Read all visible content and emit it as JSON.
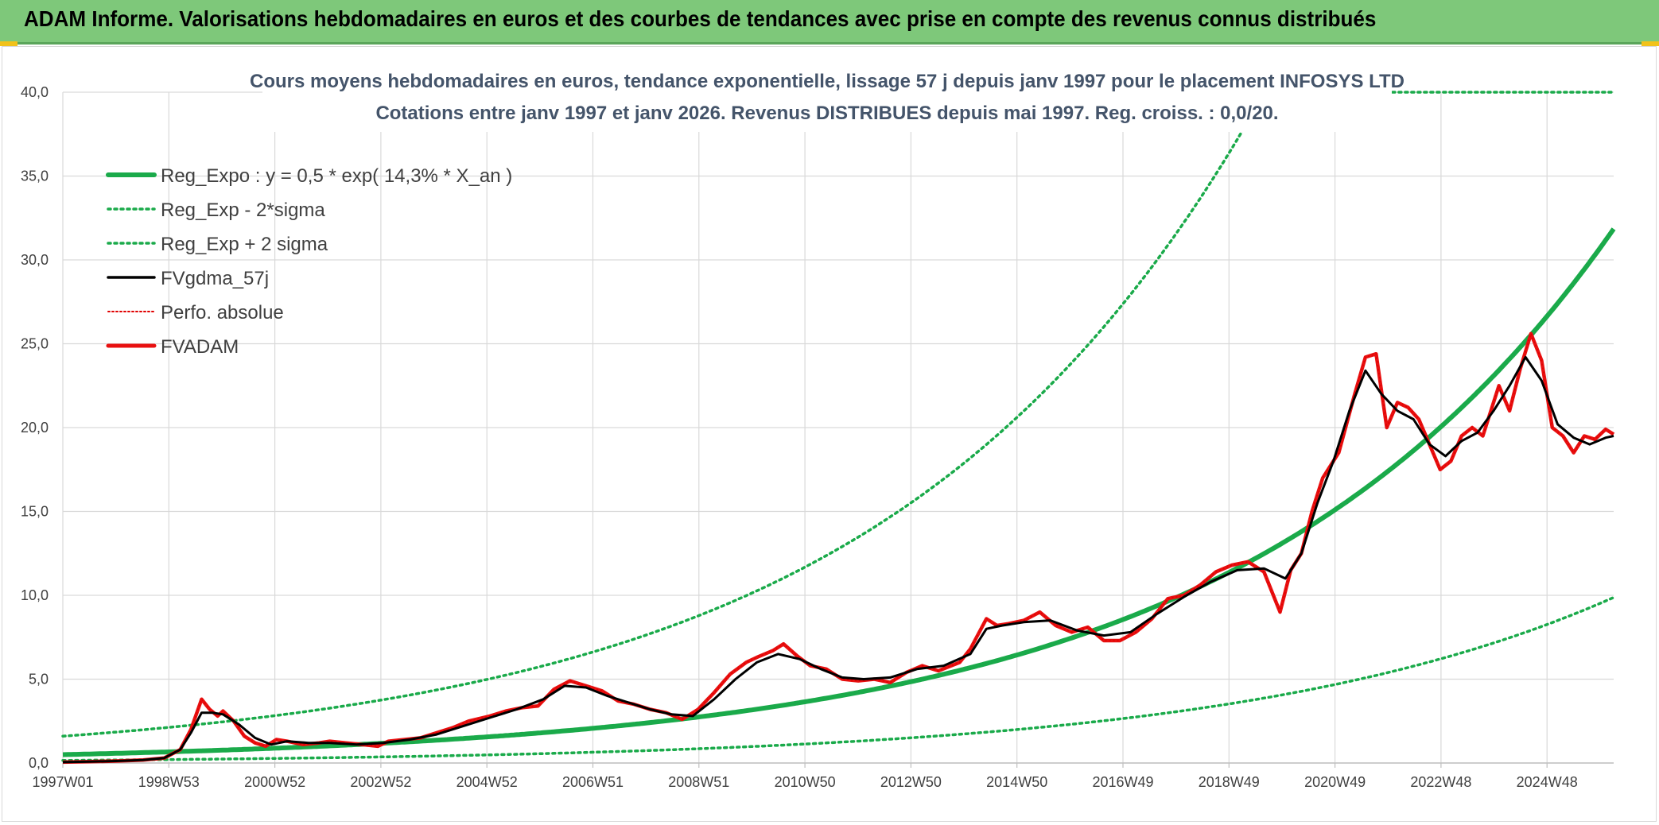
{
  "header": {
    "title": "ADAM Informe. Valorisations hebdomadaires en euros et des courbes de tendances avec prise en compte des revenus connus distribués"
  },
  "colors": {
    "header_bg": "#7ec87a",
    "reg_expo": "#1aaa4a",
    "reg_sigma": "#1aaa4a",
    "fvgdma": "#000000",
    "perfo": "#e00000",
    "fvadam": "#e81010",
    "grid": "#d9d9d9"
  },
  "chart_data": {
    "type": "line",
    "title_line1": "Cours moyens hebdomadaires en euros, tendance exponentielle, lissage 57 j depuis janv 1997 pour le placement INFOSYS LTD",
    "title_line2": "Cotations entre janv 1997 et janv 2026. Revenus DISTRIBUES depuis mai 1997. Reg. croiss. : 0,0/20.",
    "x_tick_labels": [
      "1997W01",
      "1998W53",
      "2000W52",
      "2002W52",
      "2004W52",
      "2006W51",
      "2008W51",
      "2010W50",
      "2012W50",
      "2014W50",
      "2016W49",
      "2018W49",
      "2020W49",
      "2022W48",
      "2024W48"
    ],
    "x_range": [
      1997.0,
      2026.05
    ],
    "ylim": [
      0,
      40
    ],
    "y_ticks": [
      "0,0",
      "5,0",
      "10,0",
      "15,0",
      "20,0",
      "25,0",
      "30,0",
      "35,0",
      "40,0"
    ],
    "grid": true,
    "legend_position": "top-left",
    "legend": [
      {
        "key": "reg_expo",
        "label": "Reg_Expo : y = 0,5 * exp( 14,3% *  X_an )"
      },
      {
        "key": "reg_minus",
        "label": "Reg_Exp - 2*sigma"
      },
      {
        "key": "reg_plus",
        "label": "Reg_Exp + 2 sigma"
      },
      {
        "key": "fvgdma",
        "label": "FVgdma_57j"
      },
      {
        "key": "perfo",
        "label": "Perfo. absolue"
      },
      {
        "key": "fvadam",
        "label": "FVADAM"
      }
    ],
    "regression": {
      "a": 0.5,
      "b": 0.143,
      "factor_minus": 0.31,
      "factor_plus": 3.2
    },
    "series": [
      {
        "name": "FVADAM",
        "x": [
          1997.0,
          1997.5,
          1998.0,
          1998.5,
          1998.9,
          1999.2,
          1999.4,
          1999.6,
          1999.75,
          1999.9,
          2000.0,
          2000.2,
          2000.4,
          2000.6,
          2000.8,
          2001.0,
          2001.2,
          2001.5,
          2001.8,
          2002.0,
          2002.3,
          2002.6,
          2002.9,
          2003.1,
          2003.4,
          2003.7,
          2004.0,
          2004.3,
          2004.6,
          2005.0,
          2005.3,
          2005.6,
          2005.9,
          2006.2,
          2006.5,
          2006.8,
          2007.1,
          2007.4,
          2007.7,
          2008.0,
          2008.3,
          2008.6,
          2008.9,
          2009.2,
          2009.5,
          2009.8,
          2010.0,
          2010.3,
          2010.5,
          2010.75,
          2011.0,
          2011.3,
          2011.6,
          2011.9,
          2012.2,
          2012.5,
          2012.8,
          2013.1,
          2013.4,
          2013.8,
          2014.0,
          2014.3,
          2014.5,
          2014.7,
          2015.0,
          2015.3,
          2015.6,
          2015.9,
          2016.2,
          2016.5,
          2016.8,
          2017.1,
          2017.4,
          2017.7,
          2018.0,
          2018.3,
          2018.6,
          2018.9,
          2019.2,
          2019.5,
          2019.8,
          2020.0,
          2020.2,
          2020.4,
          2020.6,
          2020.9,
          2021.2,
          2021.4,
          2021.6,
          2021.8,
          2022.0,
          2022.2,
          2022.4,
          2022.6,
          2022.8,
          2023.0,
          2023.2,
          2023.4,
          2023.6,
          2023.9,
          2024.1,
          2024.3,
          2024.5,
          2024.7,
          2024.9,
          2025.1,
          2025.3,
          2025.5,
          2025.7,
          2025.9,
          2026.05
        ],
        "values": [
          0.05,
          0.08,
          0.12,
          0.18,
          0.3,
          0.8,
          2.0,
          3.8,
          3.2,
          2.8,
          3.1,
          2.5,
          1.6,
          1.2,
          1.0,
          1.4,
          1.3,
          1.1,
          1.2,
          1.3,
          1.2,
          1.1,
          1.0,
          1.3,
          1.4,
          1.5,
          1.8,
          2.1,
          2.5,
          2.8,
          3.1,
          3.3,
          3.4,
          4.4,
          4.9,
          4.6,
          4.3,
          3.7,
          3.5,
          3.2,
          3.0,
          2.6,
          3.2,
          4.2,
          5.3,
          6.0,
          6.3,
          6.7,
          7.1,
          6.4,
          5.8,
          5.6,
          5.0,
          4.9,
          5.0,
          4.8,
          5.4,
          5.8,
          5.5,
          6.0,
          6.8,
          8.6,
          8.2,
          8.3,
          8.5,
          9.0,
          8.2,
          7.8,
          8.1,
          7.3,
          7.3,
          7.8,
          8.6,
          9.8,
          10.0,
          10.6,
          11.4,
          11.8,
          12.0,
          11.4,
          9.0,
          11.5,
          12.5,
          15.0,
          17.0,
          18.5,
          22.0,
          24.2,
          24.4,
          20.0,
          21.5,
          21.2,
          20.5,
          19.0,
          17.5,
          18.0,
          19.5,
          20.0,
          19.5,
          22.5,
          21.0,
          23.5,
          25.6,
          24.0,
          20.0,
          19.5,
          18.5,
          19.5,
          19.3,
          19.9,
          19.6
        ]
      },
      {
        "name": "FVgdma_57j",
        "x": [
          1997.0,
          1997.5,
          1998.0,
          1998.5,
          1998.9,
          1999.2,
          1999.4,
          1999.6,
          1999.8,
          2000.0,
          2000.3,
          2000.6,
          2000.9,
          2001.2,
          2001.6,
          2002.0,
          2002.5,
          2003.0,
          2003.5,
          2004.0,
          2004.5,
          2005.0,
          2005.5,
          2006.0,
          2006.4,
          2006.8,
          2007.2,
          2007.6,
          2008.0,
          2008.4,
          2008.8,
          2009.2,
          2009.6,
          2010.0,
          2010.4,
          2010.8,
          2011.2,
          2011.6,
          2012.0,
          2012.5,
          2013.0,
          2013.5,
          2014.0,
          2014.3,
          2014.6,
          2015.0,
          2015.5,
          2016.0,
          2016.5,
          2017.0,
          2017.5,
          2018.0,
          2018.5,
          2019.0,
          2019.5,
          2019.9,
          2020.2,
          2020.5,
          2020.8,
          2021.1,
          2021.4,
          2021.7,
          2022.0,
          2022.3,
          2022.6,
          2022.9,
          2023.2,
          2023.5,
          2023.8,
          2024.1,
          2024.4,
          2024.7,
          2025.0,
          2025.3,
          2025.6,
          2025.9,
          2026.05
        ],
        "values": [
          0.05,
          0.08,
          0.12,
          0.18,
          0.3,
          0.8,
          1.8,
          3.0,
          3.0,
          2.9,
          2.3,
          1.5,
          1.1,
          1.3,
          1.2,
          1.2,
          1.1,
          1.2,
          1.4,
          1.7,
          2.2,
          2.7,
          3.2,
          3.8,
          4.6,
          4.5,
          4.0,
          3.6,
          3.2,
          2.9,
          2.8,
          3.8,
          5.0,
          6.0,
          6.5,
          6.2,
          5.6,
          5.1,
          5.0,
          5.1,
          5.6,
          5.8,
          6.5,
          8.0,
          8.2,
          8.4,
          8.5,
          7.9,
          7.6,
          7.8,
          8.9,
          9.9,
          10.8,
          11.5,
          11.6,
          11.0,
          12.5,
          15.5,
          18.0,
          21.0,
          23.4,
          22.0,
          21.0,
          20.5,
          19.0,
          18.3,
          19.2,
          19.7,
          21.0,
          22.5,
          24.2,
          22.8,
          20.2,
          19.4,
          19.0,
          19.4,
          19.5
        ]
      }
    ]
  }
}
